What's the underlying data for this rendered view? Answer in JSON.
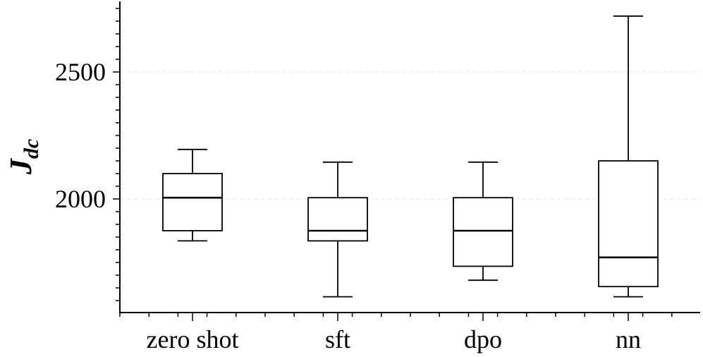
{
  "chart_data": {
    "type": "box",
    "title": "",
    "xlabel": "",
    "ylabel_main": "J",
    "ylabel_sub": "dc",
    "categories": [
      "zero shot",
      "sft",
      "dpo",
      "nn"
    ],
    "boxes": [
      {
        "name": "zero shot",
        "whisker_low": 1835,
        "q1": 1875,
        "median": 2005,
        "q3": 2100,
        "whisker_high": 2195
      },
      {
        "name": "sft",
        "whisker_low": 1615,
        "q1": 1835,
        "median": 1875,
        "q3": 2005,
        "whisker_high": 2145
      },
      {
        "name": "dpo",
        "whisker_low": 1680,
        "q1": 1735,
        "median": 1875,
        "q3": 2005,
        "whisker_high": 2145
      },
      {
        "name": "nn",
        "whisker_low": 1615,
        "q1": 1655,
        "median": 1770,
        "q3": 2150,
        "whisker_high": 2720
      }
    ],
    "y_ticks": [
      2000,
      2500
    ],
    "y_tick_labels": [
      "2000",
      "2500"
    ],
    "y_minor_step": 50,
    "ylim": [
      1560,
      2770
    ],
    "grid": true
  }
}
